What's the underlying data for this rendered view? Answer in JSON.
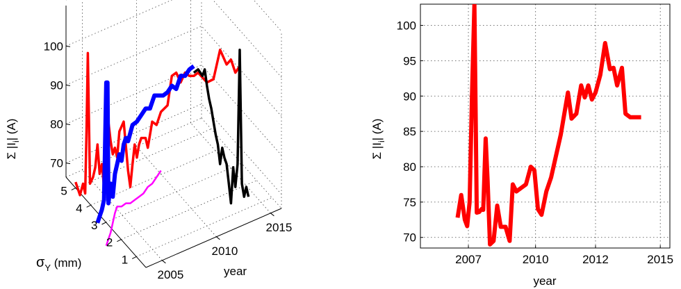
{
  "chart_data": [
    {
      "type": "line",
      "projection": "3d",
      "axes": {
        "x": {
          "label": "year",
          "ticks": [
            "2005",
            "2010",
            "2015"
          ]
        },
        "y": {
          "label_main": "σ",
          "label_sub": "Y",
          "label_unit": " (mm)",
          "ticks": [
            "1",
            "2",
            "3",
            "4",
            "5"
          ]
        },
        "z": {
          "label_pre": "Σ |I",
          "label_sub": "i",
          "label_post": "| (A)",
          "ticks": [
            "70",
            "80",
            "90",
            "100"
          ]
        }
      },
      "grid": true,
      "series": [
        {
          "color": "#ff0000",
          "width": 3.5,
          "note": "path traced in projected frame",
          "points": [
            [
              0.125,
              0.515
            ],
            [
              0.135,
              0.555
            ],
            [
              0.142,
              0.52
            ],
            [
              0.147,
              0.55
            ],
            [
              0.15,
              0.36
            ],
            [
              0.153,
              0.12
            ],
            [
              0.158,
              0.52
            ],
            [
              0.165,
              0.5
            ],
            [
              0.17,
              0.47
            ],
            [
              0.175,
              0.4
            ],
            [
              0.18,
              0.49
            ],
            [
              0.185,
              0.46
            ],
            [
              0.19,
              0.53
            ],
            [
              0.195,
              0.41
            ],
            [
              0.2,
              0.33
            ],
            [
              0.205,
              0.39
            ],
            [
              0.21,
              0.43
            ],
            [
              0.215,
              0.41
            ],
            [
              0.22,
              0.44
            ],
            [
              0.225,
              0.36
            ],
            [
              0.235,
              0.33
            ],
            [
              0.245,
              0.48
            ],
            [
              0.25,
              0.53
            ],
            [
              0.255,
              0.46
            ],
            [
              0.26,
              0.4
            ],
            [
              0.265,
              0.44
            ],
            [
              0.27,
              0.4
            ],
            [
              0.275,
              0.38
            ],
            [
              0.285,
              0.38
            ],
            [
              0.29,
              0.41
            ],
            [
              0.3,
              0.33
            ],
            [
              0.31,
              0.34
            ],
            [
              0.32,
              0.3
            ],
            [
              0.335,
              0.28
            ],
            [
              0.345,
              0.19
            ],
            [
              0.355,
              0.18
            ],
            [
              0.365,
              0.21
            ],
            [
              0.375,
              0.18
            ],
            [
              0.385,
              0.19
            ],
            [
              0.395,
              0.19
            ],
            [
              0.405,
              0.18
            ],
            [
              0.425,
              0.21
            ],
            [
              0.44,
              0.2
            ],
            [
              0.455,
              0.11
            ],
            [
              0.47,
              0.155
            ],
            [
              0.48,
              0.14
            ],
            [
              0.49,
              0.18
            ],
            [
              0.5,
              0.16
            ]
          ]
        },
        {
          "color": "#0000ff",
          "width": 6,
          "points": [
            [
              0.175,
              0.64
            ],
            [
              0.18,
              0.62
            ],
            [
              0.185,
              0.6
            ],
            [
              0.19,
              0.57
            ],
            [
              0.195,
              0.21
            ],
            [
              0.198,
              0.21
            ],
            [
              0.2,
              0.58
            ],
            [
              0.205,
              0.52
            ],
            [
              0.21,
              0.56
            ],
            [
              0.215,
              0.49
            ],
            [
              0.22,
              0.46
            ],
            [
              0.225,
              0.43
            ],
            [
              0.23,
              0.45
            ],
            [
              0.235,
              0.4
            ],
            [
              0.24,
              0.38
            ],
            [
              0.245,
              0.39
            ],
            [
              0.255,
              0.34
            ],
            [
              0.265,
              0.33
            ],
            [
              0.275,
              0.31
            ],
            [
              0.285,
              0.29
            ],
            [
              0.295,
              0.29
            ],
            [
              0.3,
              0.27
            ],
            [
              0.305,
              0.25
            ],
            [
              0.315,
              0.25
            ],
            [
              0.325,
              0.25
            ],
            [
              0.335,
              0.24
            ],
            [
              0.345,
              0.22
            ],
            [
              0.355,
              0.23
            ],
            [
              0.365,
              0.19
            ],
            [
              0.375,
              0.19
            ],
            [
              0.385,
              0.17
            ],
            [
              0.395,
              0.16
            ]
          ]
        },
        {
          "color": "#000000",
          "width": 3.5,
          "points": [
            [
              0.395,
              0.18
            ],
            [
              0.405,
              0.17
            ],
            [
              0.415,
              0.19
            ],
            [
              0.42,
              0.17
            ],
            [
              0.425,
              0.22
            ],
            [
              0.43,
              0.26
            ],
            [
              0.435,
              0.29
            ],
            [
              0.44,
              0.33
            ],
            [
              0.445,
              0.37
            ],
            [
              0.45,
              0.4
            ],
            [
              0.455,
              0.46
            ],
            [
              0.46,
              0.41
            ],
            [
              0.465,
              0.44
            ],
            [
              0.47,
              0.46
            ],
            [
              0.475,
              0.52
            ],
            [
              0.48,
              0.58
            ],
            [
              0.485,
              0.47
            ],
            [
              0.49,
              0.53
            ],
            [
              0.495,
              0.46
            ],
            [
              0.5,
              0.11
            ],
            [
              0.505,
              0.52
            ],
            [
              0.51,
              0.56
            ],
            [
              0.515,
              0.53
            ],
            [
              0.52,
              0.56
            ]
          ]
        },
        {
          "color": "#ff00ff",
          "width": 2.5,
          "points": [
            [
              0.195,
              0.71
            ],
            [
              0.2,
              0.69
            ],
            [
              0.205,
              0.67
            ],
            [
              0.21,
              0.64
            ],
            [
              0.215,
              0.61
            ],
            [
              0.22,
              0.59
            ],
            [
              0.23,
              0.59
            ],
            [
              0.24,
              0.58
            ],
            [
              0.25,
              0.58
            ],
            [
              0.26,
              0.57
            ],
            [
              0.27,
              0.56
            ],
            [
              0.28,
              0.55
            ],
            [
              0.29,
              0.53
            ],
            [
              0.3,
              0.52
            ],
            [
              0.31,
              0.5
            ],
            [
              0.32,
              0.48
            ]
          ]
        }
      ]
    },
    {
      "type": "line",
      "xlabel": "year",
      "ylabel_pre": "Σ |I",
      "ylabel_sub": "i",
      "ylabel_post": "| (A)",
      "xlim": [
        2005.0,
        2015.4
      ],
      "ylim": [
        68.5,
        103
      ],
      "xticks": [
        2007,
        2010,
        2012,
        2015
      ],
      "xtick_positions": [
        2007.0,
        2009.8,
        2012.3,
        2015.0
      ],
      "yticks": [
        70,
        75,
        80,
        85,
        90,
        95,
        100
      ],
      "grid": true,
      "series": [
        {
          "color": "#ff0000",
          "x": [
            2006.55,
            2006.7,
            2006.85,
            2006.95,
            2007.05,
            2007.15,
            2007.25,
            2007.35,
            2007.45,
            2007.55,
            2007.62,
            2007.72,
            2007.8,
            2007.9,
            2008.05,
            2008.2,
            2008.35,
            2008.55,
            2008.72,
            2008.85,
            2009.0,
            2009.2,
            2009.4,
            2009.6,
            2009.75,
            2009.9,
            2010.05,
            2010.25,
            2010.45,
            2010.65,
            2010.85,
            2011.0,
            2011.15,
            2011.3,
            2011.5,
            2011.7,
            2011.85,
            2012.0,
            2012.15,
            2012.3,
            2012.5,
            2012.7,
            2012.9,
            2013.05,
            2013.2,
            2013.4,
            2013.55,
            2013.75,
            2013.9,
            2014.05,
            2014.2
          ],
          "y": [
            72.8,
            76.0,
            72.5,
            71.6,
            75.0,
            90.0,
            103.0,
            73.5,
            73.6,
            74.0,
            73.9,
            84.0,
            78.0,
            69.0,
            69.5,
            74.5,
            71.5,
            71.5,
            69.5,
            77.5,
            76.5,
            77.0,
            77.5,
            80.0,
            79.5,
            74.0,
            73.2,
            76.5,
            78.5,
            81.5,
            84.5,
            87.5,
            90.5,
            86.8,
            87.5,
            91.5,
            89.8,
            91.5,
            89.5,
            90.5,
            93.0,
            97.5,
            93.8,
            94.0,
            91.5,
            94.0,
            87.5,
            87.0,
            87.0,
            87.0,
            87.0
          ]
        }
      ]
    }
  ]
}
